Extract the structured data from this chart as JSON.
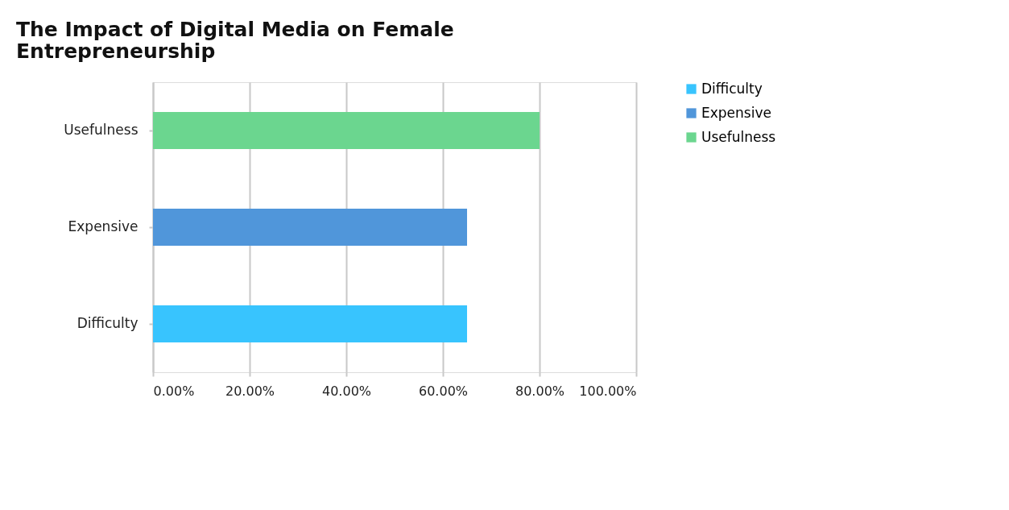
{
  "chart_data": {
    "type": "bar",
    "orientation": "horizontal",
    "stacked": true,
    "title": "The Impact of Digital Media on Female Entrepreneurship",
    "categories": [
      "Usefulness",
      "Expensive",
      "Difficulty"
    ],
    "series": [
      {
        "name": "Difficulty",
        "color": "#38c4fe",
        "values": [
          null,
          null,
          65
        ]
      },
      {
        "name": "Expensive",
        "color": "#5096da",
        "values": [
          null,
          65,
          null
        ]
      },
      {
        "name": "Usefulness",
        "color": "#6bd68f",
        "values": [
          80,
          null,
          null
        ]
      }
    ],
    "xlim": [
      0,
      100
    ],
    "xticks": [
      {
        "value": 0,
        "label": "0.00%"
      },
      {
        "value": 20,
        "label": "20.00%"
      },
      {
        "value": 40,
        "label": "40.00%"
      },
      {
        "value": 60,
        "label": "60.00%"
      },
      {
        "value": 80,
        "label": "80.00%"
      },
      {
        "value": 100,
        "label": "100.00%"
      }
    ],
    "grid": "x",
    "legend": "right"
  }
}
